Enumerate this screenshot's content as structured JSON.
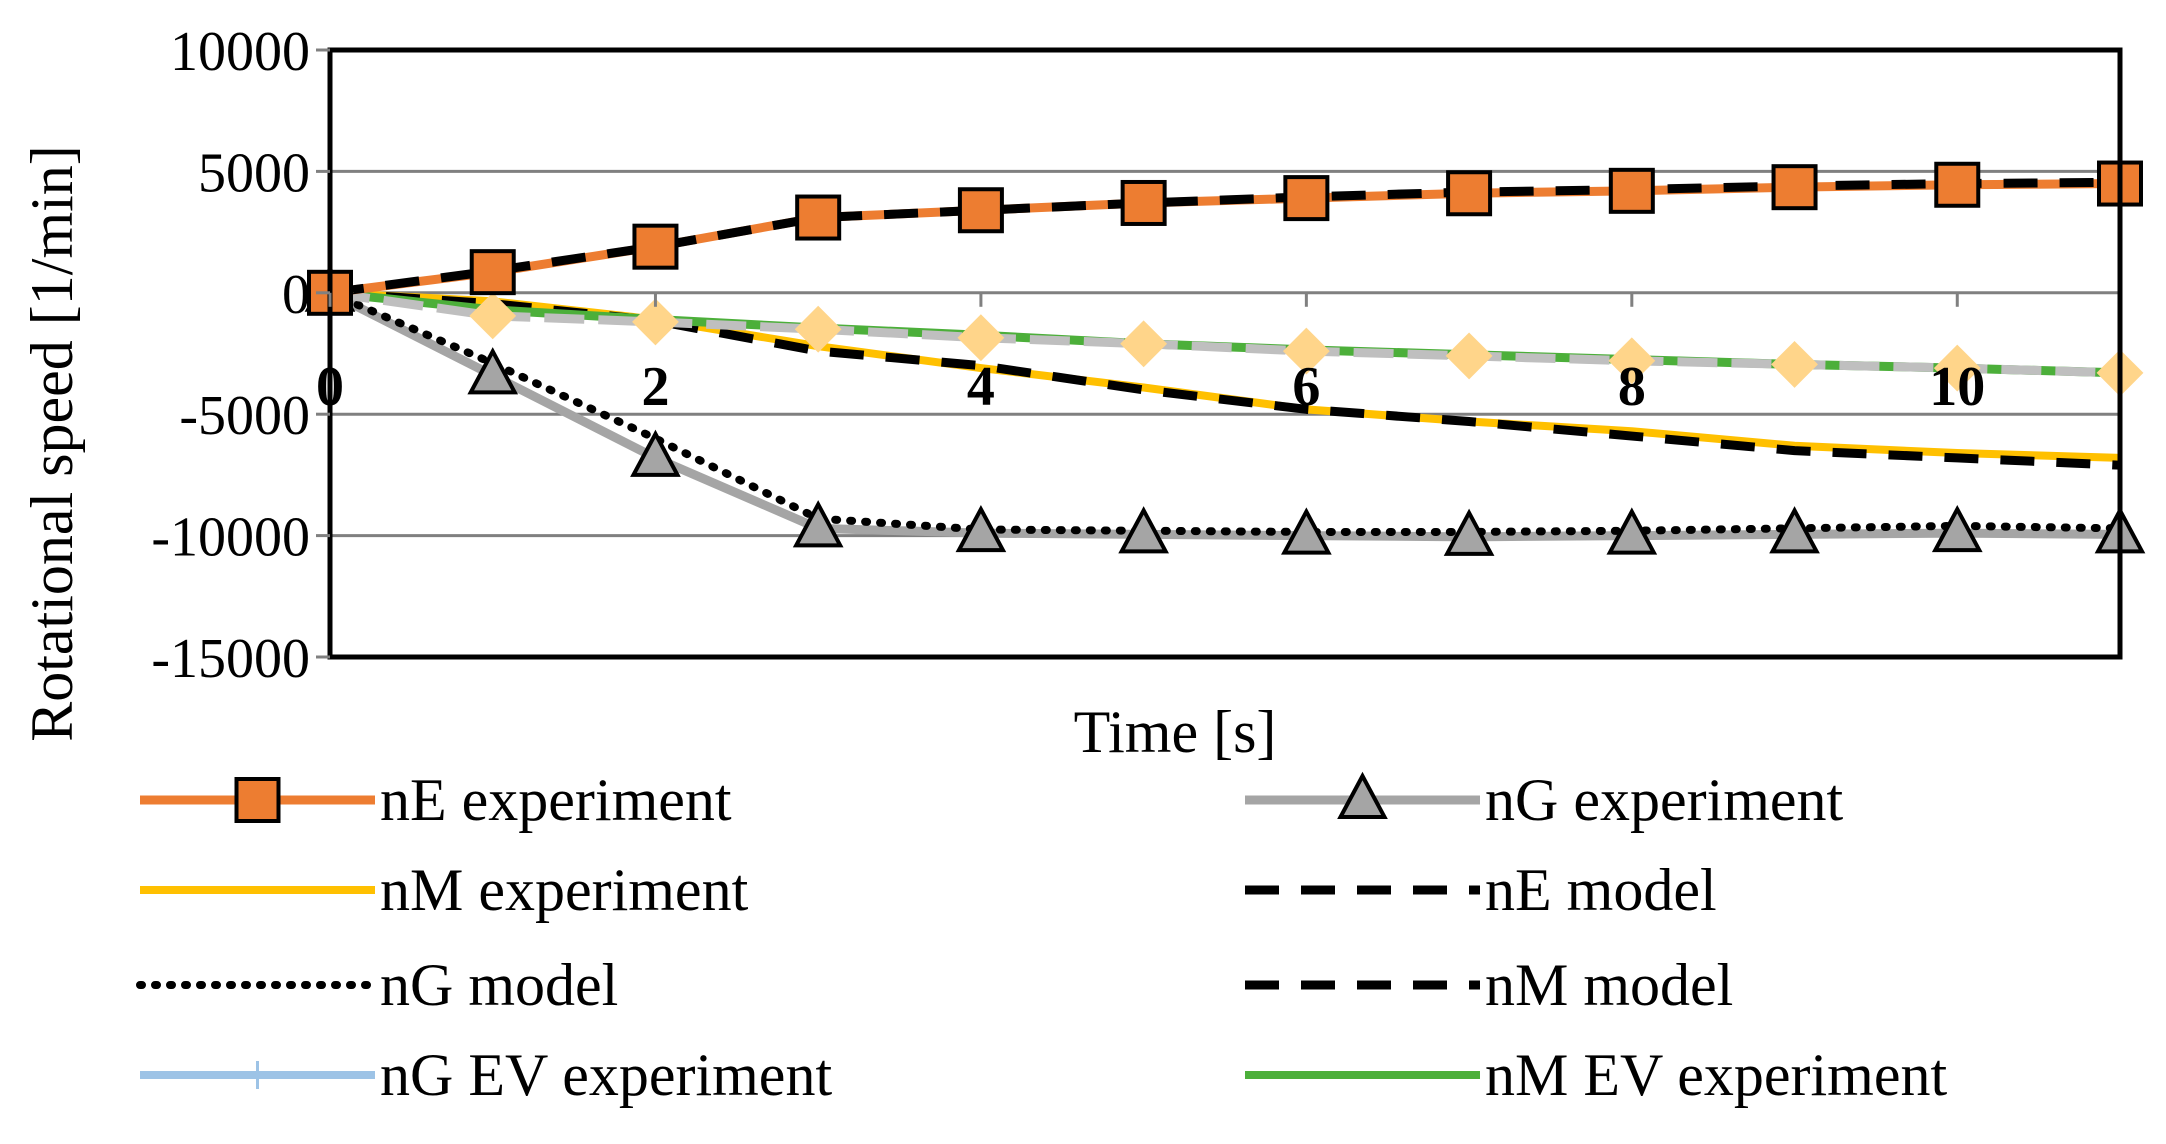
{
  "chart_data": {
    "type": "line",
    "title": "",
    "xlabel": "Time [s]",
    "ylabel": "Rotational speed  [1/min]",
    "xlim": [
      0,
      11
    ],
    "ylim": [
      -15000,
      10000
    ],
    "xticks": [
      0,
      2,
      4,
      6,
      8,
      10
    ],
    "xtick_labels": [
      "0",
      "2",
      "4",
      "6",
      "8",
      "10"
    ],
    "yticks": [
      10000,
      5000,
      0,
      -5000,
      -10000,
      -15000
    ],
    "ytick_labels": [
      "10000",
      "5000",
      "0",
      "-5000",
      "-10000",
      "-15000"
    ],
    "grid": "horizontal",
    "legend": "bottom",
    "series": [
      {
        "name": "nE experiment",
        "color": "#ED7D31",
        "marker": "square",
        "style": "solid",
        "x": [
          0,
          1,
          2,
          3,
          4,
          5,
          6,
          7,
          8,
          9,
          10,
          11
        ],
        "values": [
          0,
          850,
          1900,
          3100,
          3400,
          3700,
          3900,
          4100,
          4200,
          4350,
          4450,
          4500
        ]
      },
      {
        "name": "nG experiment",
        "color": "#A5A5A5",
        "marker": "triangle",
        "style": "solid",
        "x": [
          0,
          1,
          2,
          3,
          4,
          5,
          6,
          7,
          8,
          9,
          10,
          11
        ],
        "values": [
          0,
          -3400,
          -6800,
          -9700,
          -9900,
          -9950,
          -10000,
          -10050,
          -10000,
          -9950,
          -9900,
          -9950
        ]
      },
      {
        "name": "nM experiment",
        "color": "#FFC000",
        "marker": "none",
        "style": "solid",
        "x": [
          0,
          1,
          2,
          3,
          4,
          5,
          6,
          7,
          8,
          9,
          10,
          11
        ],
        "values": [
          0,
          -350,
          -1100,
          -2200,
          -3100,
          -3900,
          -4800,
          -5300,
          -5700,
          -6300,
          -6600,
          -6800
        ]
      },
      {
        "name": "nE model",
        "color": "#000000",
        "marker": "none",
        "style": "dashed",
        "x": [
          0,
          1,
          2,
          3,
          4,
          5,
          6,
          7,
          8,
          9,
          10,
          11
        ],
        "values": [
          0,
          900,
          1900,
          3100,
          3400,
          3700,
          3950,
          4150,
          4250,
          4400,
          4500,
          4550
        ]
      },
      {
        "name": "nG model",
        "color": "#000000",
        "marker": "none",
        "style": "dotted",
        "x": [
          0,
          1,
          2,
          3,
          4,
          5,
          6,
          7,
          8,
          9,
          10,
          11
        ],
        "values": [
          0,
          -2900,
          -6000,
          -9300,
          -9750,
          -9800,
          -9850,
          -9850,
          -9800,
          -9700,
          -9600,
          -9700
        ]
      },
      {
        "name": "nM model",
        "color": "#000000",
        "marker": "none",
        "style": "dashed",
        "x": [
          0,
          1,
          2,
          3,
          4,
          5,
          6,
          7,
          8,
          9,
          10,
          11
        ],
        "values": [
          0,
          -450,
          -1150,
          -2400,
          -3000,
          -4000,
          -4800,
          -5300,
          -5900,
          -6500,
          -6800,
          -7100
        ]
      },
      {
        "name": "nG EV experiment",
        "color": "#9DC3E6",
        "marker": "diamond",
        "style": "solid",
        "x": [
          0,
          1,
          2,
          3,
          4,
          5,
          6,
          7,
          8,
          9,
          10,
          11
        ],
        "values": [
          0,
          -950,
          -1200,
          -1500,
          -1850,
          -2100,
          -2400,
          -2600,
          -2800,
          -2950,
          -3100,
          -3300
        ]
      },
      {
        "name": "nM EV experiment",
        "color": "#4CAF3A",
        "marker": "none",
        "style": "solid",
        "x": [
          0,
          1,
          2,
          3,
          4,
          5,
          6,
          7,
          8,
          9,
          10,
          11
        ],
        "values": [
          0,
          -700,
          -1100,
          -1450,
          -1750,
          -2100,
          -2350,
          -2550,
          -2750,
          -2950,
          -3100,
          -3300
        ]
      }
    ]
  },
  "legend": {
    "items": [
      {
        "label": "nE experiment"
      },
      {
        "label": "nG experiment"
      },
      {
        "label": "nM experiment"
      },
      {
        "label": "nE model"
      },
      {
        "label": "nG model"
      },
      {
        "label": "nM model"
      },
      {
        "label": "nG EV experiment"
      },
      {
        "label": "nM EV experiment"
      }
    ]
  },
  "colors": {
    "diamond_marker": "#FFD58A",
    "ev_gray_line": "#BFBFBF",
    "axis": "#7F7F7F"
  }
}
